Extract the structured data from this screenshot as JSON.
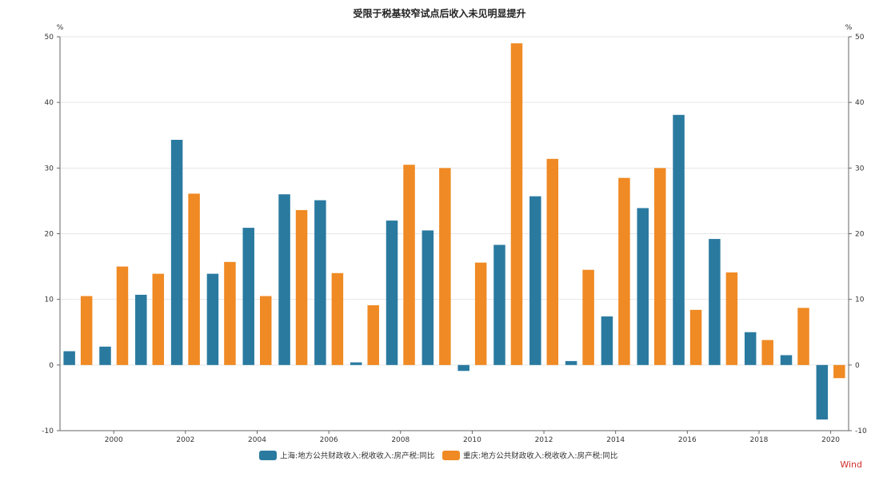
{
  "chart_data": {
    "type": "bar",
    "title": "受限于税基较窄试点后收入未见明显提升",
    "y_unit_left": "%",
    "y_unit_right": "%",
    "ylim": [
      -10,
      50
    ],
    "yticks": [
      -10,
      0,
      10,
      20,
      30,
      40,
      50
    ],
    "categories": [
      "1999",
      "2000",
      "2001",
      "2002",
      "2003",
      "2004",
      "2005",
      "2006",
      "2007",
      "2008",
      "2009",
      "2010",
      "2011",
      "2012",
      "2013",
      "2014",
      "2015",
      "2016",
      "2017",
      "2018",
      "2019",
      "2020"
    ],
    "xtick_labels": [
      "2000",
      "2002",
      "2004",
      "2006",
      "2008",
      "2010",
      "2012",
      "2014",
      "2016",
      "2018",
      "2020"
    ],
    "series": [
      {
        "name": "上海:地方公共财政收入:税收收入:房产税:同比",
        "color": "#2a7aa0",
        "values": [
          2.1,
          2.8,
          10.7,
          34.3,
          13.9,
          20.9,
          26.0,
          25.1,
          0.4,
          22.0,
          20.5,
          -0.9,
          18.3,
          25.7,
          0.6,
          7.4,
          23.9,
          38.1,
          19.2,
          5.0,
          1.5,
          -8.3
        ]
      },
      {
        "name": "重庆:地方公共财政收入:税收收入:房产税:同比",
        "color": "#f08a24",
        "values": [
          10.5,
          15.0,
          13.9,
          26.1,
          15.7,
          10.5,
          23.6,
          14.0,
          9.1,
          30.5,
          30.0,
          15.6,
          49.0,
          31.4,
          14.5,
          28.5,
          30.0,
          8.4,
          14.1,
          3.8,
          8.7,
          -2.0
        ]
      }
    ],
    "grid": true,
    "legend_position": "bottom"
  },
  "source_label": "Wind"
}
